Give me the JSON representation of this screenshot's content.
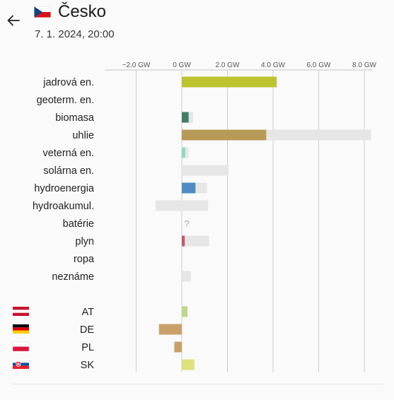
{
  "header": {
    "title": "Česko",
    "datetime": "7. 1. 2024, 20:00",
    "back_icon": "arrow-left-icon",
    "flag_icon": "flag-cz-icon"
  },
  "colors": {
    "nuclear": "#bcc32e",
    "biomass": "#3f7f66",
    "coal": "#b89a58",
    "wind": "#8fd8c0",
    "hydro": "#4e8cc4",
    "gas": "#c4596a",
    "at": "#bcd88a",
    "de": "#c9a06a",
    "pl": "#c9a06a",
    "sk": "#dde27a",
    "capacity": "#e6e6e6",
    "grid": "#cfcfcf",
    "unknown_mark": "#aaaaaa"
  },
  "chart_data": {
    "type": "bar",
    "orientation": "horizontal",
    "unit": "GW",
    "xlim": [
      -3.3,
      8.4
    ],
    "ticks": [
      -2.0,
      0,
      2.0,
      4.0,
      6.0,
      8.0
    ],
    "tick_labels": [
      "−2.0 GW",
      "0 GW",
      "2.0 GW",
      "4.0 GW",
      "6.0 GW",
      "8.0 GW"
    ],
    "production": [
      {
        "label": "jadrová en.",
        "value": 4.15,
        "capacity": [
          0,
          4.2
        ],
        "color": "nuclear"
      },
      {
        "label": "geoterm. en.",
        "value": 0,
        "capacity": null,
        "color": "nuclear"
      },
      {
        "label": "biomasa",
        "value": 0.3,
        "capacity": [
          0,
          0.5
        ],
        "color": "biomass"
      },
      {
        "label": "uhlie",
        "value": 3.7,
        "capacity": [
          0,
          8.3
        ],
        "color": "coal"
      },
      {
        "label": "veterná en.",
        "value": 0.15,
        "capacity": [
          0,
          0.3
        ],
        "color": "wind"
      },
      {
        "label": "solárna en.",
        "value": 0,
        "capacity": [
          0,
          2.05
        ],
        "color": "nuclear"
      },
      {
        "label": "hydroenergia",
        "value": 0.6,
        "capacity": [
          0,
          1.1
        ],
        "color": "hydro"
      },
      {
        "label": "hydroakumul.",
        "value": 0,
        "capacity": [
          -1.15,
          1.15
        ],
        "color": "hydro"
      },
      {
        "label": "batérie",
        "value": null,
        "unknown": "?",
        "capacity": null,
        "color": "nuclear"
      },
      {
        "label": "plyn",
        "value": 0.13,
        "capacity": [
          0,
          1.2
        ],
        "color": "gas"
      },
      {
        "label": "ropa",
        "value": 0,
        "capacity": null,
        "color": "nuclear"
      },
      {
        "label": "neznáme",
        "value": 0,
        "capacity": [
          0,
          0.4
        ],
        "color": "nuclear"
      }
    ],
    "exchange": [
      {
        "label": "AT",
        "value": 0.25,
        "color": "at",
        "flag": "flag-at-icon"
      },
      {
        "label": "DE",
        "value": -1.0,
        "color": "de",
        "flag": "flag-de-icon"
      },
      {
        "label": "PL",
        "value": -0.33,
        "color": "pl",
        "flag": "flag-pl-icon"
      },
      {
        "label": "SK",
        "value": 0.55,
        "color": "sk",
        "flag": "flag-sk-icon"
      }
    ]
  }
}
